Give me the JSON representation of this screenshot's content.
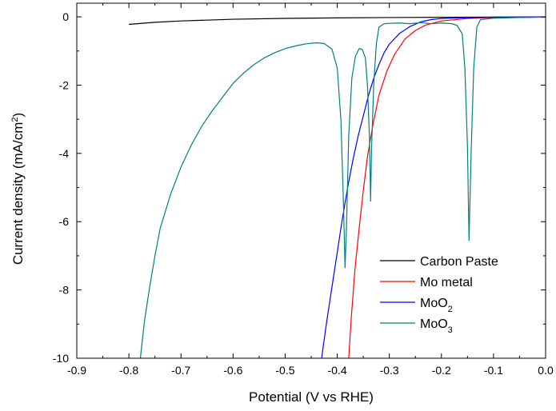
{
  "chart_data": {
    "type": "line",
    "title": "",
    "xlabel": "Potential (V vs RHE)",
    "ylabel": {
      "main": "Current density (mA/cm",
      "sup": "2",
      "tail": ")"
    },
    "xlim": [
      -0.9,
      0.0
    ],
    "ylim": [
      -10,
      0.4
    ],
    "x_ticks": [
      "-0.9",
      "-0.8",
      "-0.7",
      "-0.6",
      "-0.5",
      "-0.4",
      "-0.3",
      "-0.2",
      "-0.1",
      "0.0"
    ],
    "y_ticks": [
      "0",
      "-2",
      "-4",
      "-6",
      "-8",
      "-10"
    ],
    "legend_position": "bottom-right",
    "series": [
      {
        "name": "Carbon Paste",
        "label": {
          "base": "Carbon Paste",
          "sub": ""
        },
        "color": "#000000",
        "points": [
          [
            -0.8,
            -0.22
          ],
          [
            -0.75,
            -0.16
          ],
          [
            -0.7,
            -0.12
          ],
          [
            -0.6,
            -0.07
          ],
          [
            -0.5,
            -0.045
          ],
          [
            -0.4,
            -0.03
          ],
          [
            -0.3,
            -0.02
          ],
          [
            -0.2,
            -0.012
          ],
          [
            -0.1,
            -0.006
          ],
          [
            0.0,
            -0.003
          ]
        ]
      },
      {
        "name": "Mo metal",
        "label": {
          "base": "Mo metal",
          "sub": ""
        },
        "color": "#ff0000",
        "points": [
          [
            -0.378,
            -10
          ],
          [
            -0.373,
            -8.8
          ],
          [
            -0.366,
            -7.4
          ],
          [
            -0.358,
            -6.2
          ],
          [
            -0.35,
            -5.1
          ],
          [
            -0.342,
            -4.1
          ],
          [
            -0.332,
            -3.2
          ],
          [
            -0.32,
            -2.3
          ],
          [
            -0.305,
            -1.6
          ],
          [
            -0.29,
            -1.1
          ],
          [
            -0.27,
            -0.65
          ],
          [
            -0.25,
            -0.4
          ],
          [
            -0.23,
            -0.24
          ],
          [
            -0.2,
            -0.12
          ],
          [
            -0.15,
            -0.05
          ],
          [
            -0.1,
            -0.02
          ],
          [
            0.0,
            -0.005
          ]
        ]
      },
      {
        "name": "MoO2",
        "label": {
          "base": "MoO",
          "sub": "2"
        },
        "color": "#0000ff",
        "points": [
          [
            -0.43,
            -10
          ],
          [
            -0.42,
            -8.9
          ],
          [
            -0.41,
            -7.9
          ],
          [
            -0.4,
            -6.9
          ],
          [
            -0.39,
            -5.9
          ],
          [
            -0.38,
            -5.0
          ],
          [
            -0.37,
            -4.2
          ],
          [
            -0.36,
            -3.5
          ],
          [
            -0.35,
            -2.9
          ],
          [
            -0.34,
            -2.3
          ],
          [
            -0.33,
            -1.8
          ],
          [
            -0.32,
            -1.4
          ],
          [
            -0.31,
            -1.05
          ],
          [
            -0.3,
            -0.8
          ],
          [
            -0.28,
            -0.48
          ],
          [
            -0.26,
            -0.28
          ],
          [
            -0.24,
            -0.15
          ],
          [
            -0.22,
            -0.08
          ],
          [
            -0.2,
            -0.05
          ],
          [
            -0.15,
            -0.025
          ],
          [
            -0.1,
            -0.01
          ],
          [
            0.0,
            0.0
          ]
        ]
      },
      {
        "name": "MoO3",
        "label": {
          "base": "MoO",
          "sub": "3"
        },
        "color": "#008080",
        "points": [
          [
            -0.778,
            -10
          ],
          [
            -0.77,
            -8.9
          ],
          [
            -0.76,
            -7.9
          ],
          [
            -0.75,
            -7.0
          ],
          [
            -0.74,
            -6.2
          ],
          [
            -0.72,
            -5.2
          ],
          [
            -0.7,
            -4.4
          ],
          [
            -0.68,
            -3.75
          ],
          [
            -0.66,
            -3.2
          ],
          [
            -0.64,
            -2.75
          ],
          [
            -0.62,
            -2.35
          ],
          [
            -0.6,
            -1.95
          ],
          [
            -0.58,
            -1.65
          ],
          [
            -0.56,
            -1.4
          ],
          [
            -0.54,
            -1.2
          ],
          [
            -0.52,
            -1.05
          ],
          [
            -0.5,
            -0.93
          ],
          [
            -0.48,
            -0.85
          ],
          [
            -0.46,
            -0.79
          ],
          [
            -0.44,
            -0.76
          ],
          [
            -0.425,
            -0.78
          ],
          [
            -0.41,
            -0.95
          ],
          [
            -0.4,
            -1.5
          ],
          [
            -0.393,
            -3.0
          ],
          [
            -0.388,
            -5.5
          ],
          [
            -0.385,
            -7.35
          ],
          [
            -0.382,
            -6.0
          ],
          [
            -0.378,
            -3.5
          ],
          [
            -0.372,
            -1.8
          ],
          [
            -0.365,
            -1.15
          ],
          [
            -0.358,
            -0.93
          ],
          [
            -0.352,
            -0.95
          ],
          [
            -0.346,
            -1.2
          ],
          [
            -0.342,
            -2.0
          ],
          [
            -0.338,
            -3.6
          ],
          [
            -0.336,
            -5.4
          ],
          [
            -0.334,
            -3.8
          ],
          [
            -0.33,
            -2.0
          ],
          [
            -0.325,
            -0.8
          ],
          [
            -0.32,
            -0.3
          ],
          [
            -0.31,
            -0.2
          ],
          [
            -0.3,
            -0.19
          ],
          [
            -0.28,
            -0.18
          ],
          [
            -0.26,
            -0.2
          ],
          [
            -0.24,
            -0.17
          ],
          [
            -0.22,
            -0.2
          ],
          [
            -0.2,
            -0.18
          ],
          [
            -0.18,
            -0.2
          ],
          [
            -0.17,
            -0.25
          ],
          [
            -0.16,
            -0.5
          ],
          [
            -0.155,
            -1.5
          ],
          [
            -0.15,
            -3.8
          ],
          [
            -0.147,
            -6.55
          ],
          [
            -0.143,
            -4.0
          ],
          [
            -0.138,
            -1.5
          ],
          [
            -0.132,
            -0.3
          ],
          [
            -0.125,
            -0.08
          ],
          [
            -0.1,
            -0.04
          ],
          [
            -0.05,
            -0.02
          ],
          [
            0.0,
            -0.01
          ]
        ]
      }
    ]
  }
}
